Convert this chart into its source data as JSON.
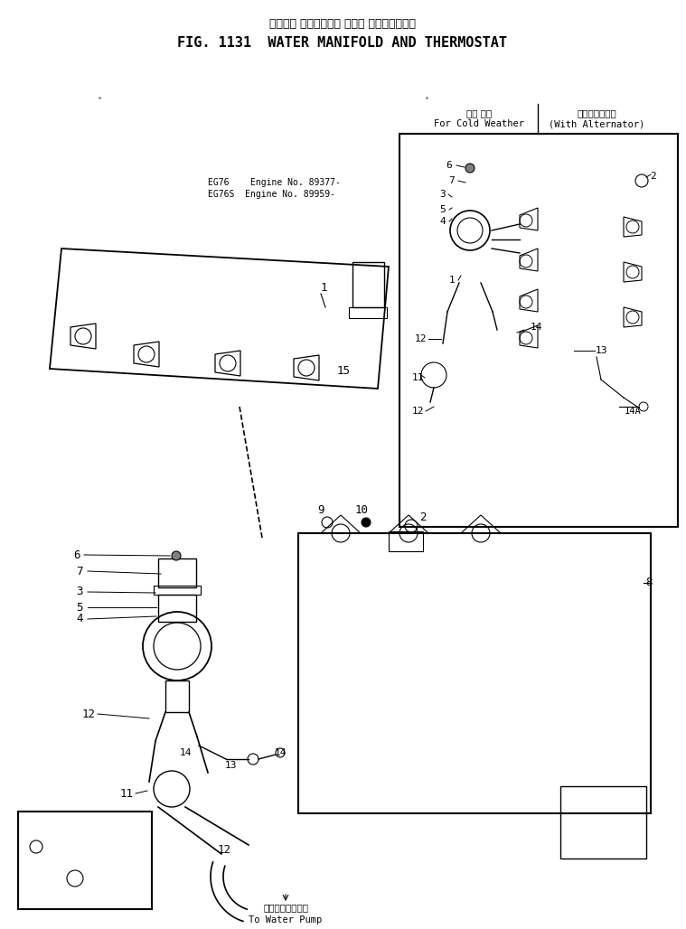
{
  "title_japanese": "ウォータ マニホールド および サーモスタット",
  "title_english": "FIG. 1131  WATER MANIFOLD AND THERMOSTAT",
  "bg_color": "#ffffff",
  "line_color": "#000000",
  "fig_width": 7.59,
  "fig_height": 10.28,
  "cold_weather_label_jp": "寒地 仕様",
  "cold_weather_label_en": "For Cold Weather",
  "alternator_label_jp": "オルタネータ付",
  "alternator_label_en": "(With Alternator)",
  "water_pump_jp": "ウォータポンプへ",
  "water_pump_en": "To Water Pump",
  "engine_label1": "EG76    Engine No. 89377-",
  "engine_label2": "EG76S  Engine No. 89959-"
}
